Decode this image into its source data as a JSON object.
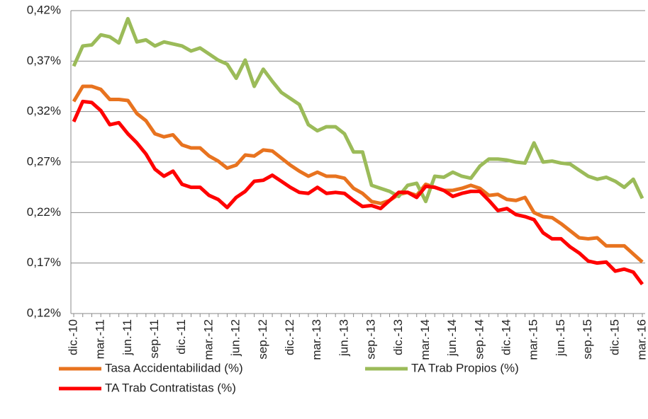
{
  "chart_data": {
    "type": "line",
    "categories": [
      "dic.-10",
      null,
      null,
      "mar.-11",
      null,
      null,
      "jun.-11",
      null,
      null,
      "sep.-11",
      null,
      null,
      "dic.-11",
      null,
      null,
      "mar.-12",
      null,
      null,
      "jun.-12",
      null,
      null,
      "sep.-12",
      null,
      null,
      "dic.-12",
      null,
      null,
      "mar.-13",
      null,
      null,
      "jun.-13",
      null,
      null,
      "sep.-13",
      null,
      null,
      "dic.-13",
      null,
      null,
      "mar.-14",
      null,
      null,
      "jun.-14",
      null,
      null,
      "sep.-14",
      null,
      null,
      "dic.-14",
      null,
      null,
      "mar.-15",
      null,
      null,
      "jun.-15",
      null,
      null,
      "sep.-15",
      null,
      null,
      "dic.-15",
      null,
      null,
      "mar.-16"
    ],
    "series": [
      {
        "name": "Tasa Accidentabilidad (%)",
        "color": "#e8731f",
        "values": [
          0.33,
          0.345,
          0.345,
          0.342,
          0.332,
          0.332,
          0.331,
          0.318,
          0.311,
          0.298,
          0.295,
          0.297,
          0.287,
          0.284,
          0.284,
          0.276,
          0.271,
          0.264,
          0.267,
          0.277,
          0.276,
          0.282,
          0.281,
          0.274,
          0.267,
          0.261,
          0.256,
          0.26,
          0.256,
          0.256,
          0.254,
          0.244,
          0.239,
          0.231,
          0.229,
          0.232,
          0.238,
          0.24,
          0.237,
          0.248,
          0.245,
          0.242,
          0.242,
          0.244,
          0.247,
          0.244,
          0.237,
          0.238,
          0.233,
          0.232,
          0.235,
          0.22,
          0.216,
          0.215,
          0.209,
          0.202,
          0.195,
          0.194,
          0.195,
          0.187,
          0.187,
          0.187,
          0.179,
          0.171
        ]
      },
      {
        "name": "TA Trab Propios (%)",
        "color": "#9bbb59",
        "values": [
          0.365,
          0.385,
          0.386,
          0.396,
          0.394,
          0.388,
          0.412,
          0.389,
          0.391,
          0.385,
          0.389,
          0.387,
          0.385,
          0.38,
          0.383,
          0.377,
          0.371,
          0.367,
          0.353,
          0.371,
          0.345,
          0.362,
          0.35,
          0.339,
          0.333,
          0.327,
          0.307,
          0.301,
          0.305,
          0.305,
          0.298,
          0.28,
          0.28,
          0.247,
          0.244,
          0.241,
          0.236,
          0.247,
          0.249,
          0.231,
          0.256,
          0.255,
          0.26,
          0.256,
          0.254,
          0.266,
          0.273,
          0.273,
          0.272,
          0.27,
          0.269,
          0.289,
          0.27,
          0.271,
          0.269,
          0.268,
          0.262,
          0.256,
          0.253,
          0.255,
          0.251,
          0.245,
          0.253,
          0.234
        ]
      },
      {
        "name": "TA Trab Contratistas (%)",
        "color": "#ff0000",
        "values": [
          0.31,
          0.33,
          0.329,
          0.321,
          0.307,
          0.309,
          0.298,
          0.289,
          0.278,
          0.263,
          0.256,
          0.261,
          0.248,
          0.245,
          0.245,
          0.237,
          0.233,
          0.225,
          0.235,
          0.241,
          0.251,
          0.252,
          0.257,
          0.251,
          0.245,
          0.24,
          0.239,
          0.245,
          0.239,
          0.24,
          0.239,
          0.232,
          0.226,
          0.227,
          0.224,
          0.232,
          0.24,
          0.24,
          0.235,
          0.246,
          0.245,
          0.242,
          0.236,
          0.239,
          0.241,
          0.241,
          0.232,
          0.222,
          0.224,
          0.218,
          0.216,
          0.213,
          0.2,
          0.194,
          0.194,
          0.186,
          0.18,
          0.172,
          0.17,
          0.171,
          0.162,
          0.164,
          0.161,
          0.149
        ]
      }
    ],
    "ylim": [
      0.12,
      0.42
    ],
    "yticks": [
      {
        "value": 0.12,
        "label": "0,12%"
      },
      {
        "value": 0.17,
        "label": "0,17%"
      },
      {
        "value": 0.22,
        "label": "0,22%"
      },
      {
        "value": 0.27,
        "label": "0,27%"
      },
      {
        "value": 0.32,
        "label": "0,32%"
      },
      {
        "value": 0.37,
        "label": "0,37%"
      },
      {
        "value": 0.42,
        "label": "0,42%"
      }
    ],
    "grid": true,
    "legend": "bottom"
  }
}
